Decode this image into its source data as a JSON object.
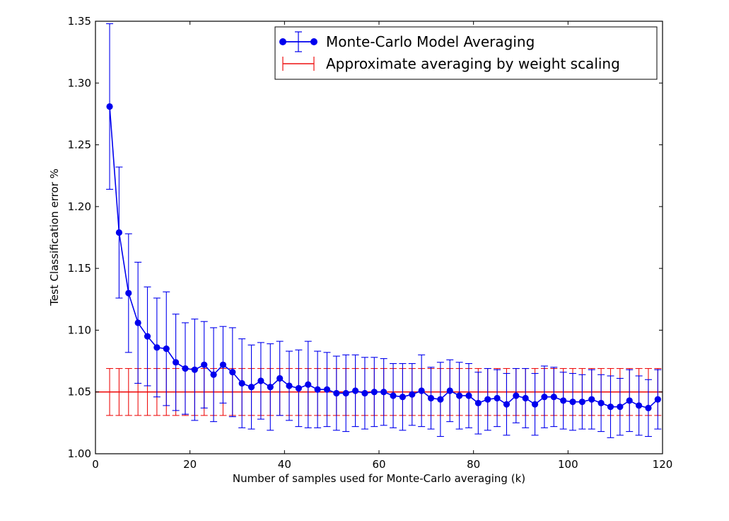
{
  "chart_data": {
    "type": "line",
    "title": "",
    "xlabel": "Number of samples used for Monte-Carlo averaging (k)",
    "ylabel": "Test Classification error %",
    "xlim": [
      0,
      120
    ],
    "ylim": [
      1.0,
      1.35
    ],
    "xticks": [
      "0",
      "20",
      "40",
      "60",
      "80",
      "100",
      "120"
    ],
    "yticks": [
      "1.00",
      "1.05",
      "1.10",
      "1.15",
      "1.20",
      "1.25",
      "1.30",
      "1.35"
    ],
    "legend_position": "top-right",
    "colors": {
      "mc": "#0000ee",
      "ws": "#ee1111"
    },
    "series": [
      {
        "name": "Monte-Carlo Model Averaging",
        "x": [
          3,
          5,
          7,
          9,
          11,
          13,
          15,
          17,
          19,
          21,
          23,
          25,
          27,
          29,
          31,
          33,
          35,
          37,
          39,
          41,
          43,
          45,
          47,
          49,
          51,
          53,
          55,
          57,
          59,
          61,
          63,
          65,
          67,
          69,
          71,
          73,
          75,
          77,
          79,
          81,
          83,
          85,
          87,
          89,
          91,
          93,
          95,
          97,
          99,
          101,
          103,
          105,
          107,
          109,
          111,
          113,
          115,
          117,
          119
        ],
        "y": [
          1.281,
          1.179,
          1.13,
          1.106,
          1.095,
          1.086,
          1.085,
          1.074,
          1.069,
          1.068,
          1.072,
          1.064,
          1.072,
          1.066,
          1.057,
          1.054,
          1.059,
          1.054,
          1.061,
          1.055,
          1.053,
          1.056,
          1.052,
          1.052,
          1.049,
          1.049,
          1.051,
          1.049,
          1.05,
          1.05,
          1.047,
          1.046,
          1.048,
          1.051,
          1.045,
          1.044,
          1.051,
          1.047,
          1.047,
          1.041,
          1.044,
          1.045,
          1.04,
          1.047,
          1.045,
          1.04,
          1.046,
          1.046,
          1.043,
          1.042,
          1.042,
          1.044,
          1.041,
          1.038,
          1.038,
          1.043,
          1.039,
          1.037,
          1.044
        ],
        "err": [
          0.067,
          0.053,
          0.048,
          0.049,
          0.04,
          0.04,
          0.046,
          0.039,
          0.037,
          0.041,
          0.035,
          0.038,
          0.031,
          0.036,
          0.036,
          0.034,
          0.031,
          0.035,
          0.03,
          0.028,
          0.031,
          0.035,
          0.031,
          0.03,
          0.03,
          0.031,
          0.029,
          0.029,
          0.028,
          0.027,
          0.026,
          0.027,
          0.025,
          0.029,
          0.025,
          0.03,
          0.025,
          0.027,
          0.026,
          0.025,
          0.025,
          0.023,
          0.025,
          0.022,
          0.024,
          0.025,
          0.025,
          0.024,
          0.023,
          0.023,
          0.022,
          0.024,
          0.023,
          0.025,
          0.023,
          0.025,
          0.024,
          0.023,
          0.024
        ]
      },
      {
        "name": "Approximate averaging by weight scaling",
        "y_const": 1.05,
        "err_const": 0.019,
        "x_err_positions": [
          3,
          5,
          7,
          9,
          11,
          13,
          15,
          17,
          19,
          21,
          23,
          25,
          27,
          29,
          31,
          33,
          35,
          37,
          39,
          41,
          43,
          45,
          47,
          49,
          51,
          53,
          55,
          57,
          59,
          61,
          63,
          65,
          67,
          69,
          71,
          73,
          75,
          77,
          79,
          81,
          83,
          85,
          87,
          89,
          91,
          93,
          95,
          97,
          99,
          101,
          103,
          105,
          107,
          109,
          111,
          113,
          115,
          117,
          119
        ]
      }
    ]
  }
}
